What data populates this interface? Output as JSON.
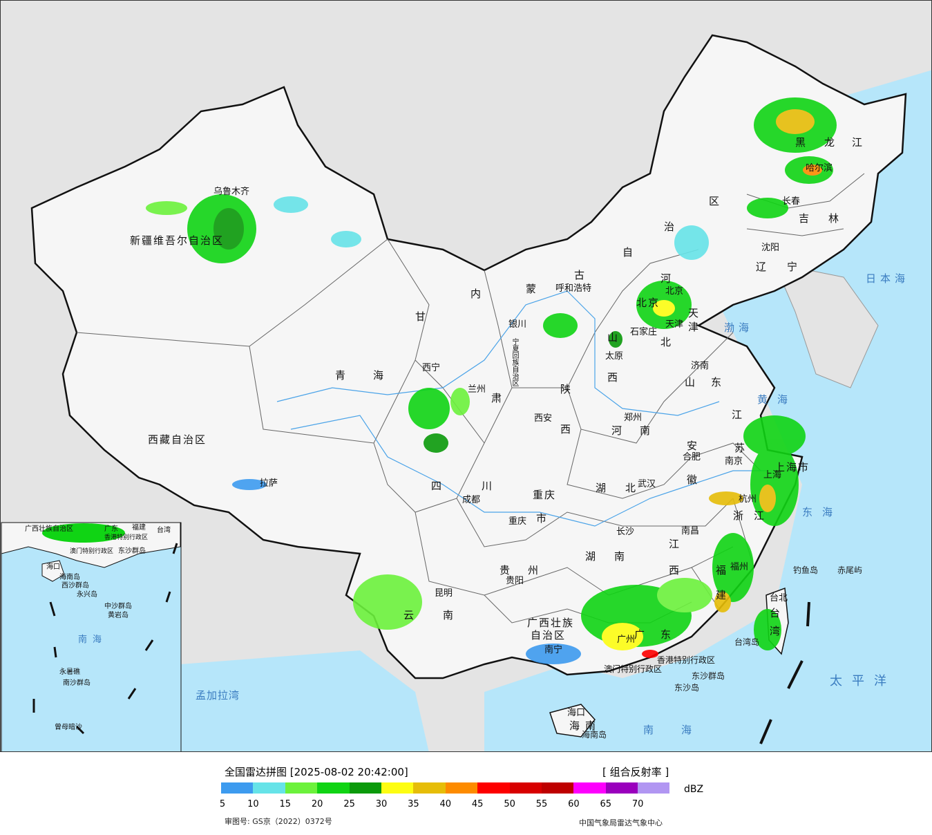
{
  "title": "全国雷达拼图 [2025-08-02 20:42:00]",
  "product": "[ 组合反射率 ]",
  "unit": "dBZ",
  "approval_no": "审图号: GS京（2022）0372号",
  "credit": "中国气象局雷达气象中心",
  "legend": {
    "colors": [
      "#3d9bef",
      "#66e3e8",
      "#6cf23c",
      "#10d414",
      "#0b9a0b",
      "#fdfd12",
      "#e6bd08",
      "#fd8b00",
      "#fd0000",
      "#d80000",
      "#be0000",
      "#fd00fd",
      "#9a00bd",
      "#b196f2"
    ],
    "ticks": [
      "5",
      "10",
      "15",
      "20",
      "25",
      "30",
      "35",
      "40",
      "45",
      "50",
      "55",
      "60",
      "65",
      "70"
    ]
  },
  "colors": {
    "sea": "#b6e6fa",
    "land": "#f6f6f6",
    "outside": "#e4e4e4",
    "border": "#111111"
  },
  "provinces": [
    "新疆维吾尔自治区",
    "西藏自治区",
    "青海",
    "甘",
    "肃",
    "内",
    "蒙",
    "古",
    "自",
    "治",
    "区",
    "黑",
    "龙",
    "江",
    "吉",
    "林",
    "辽",
    "宁",
    "河",
    "北",
    "山",
    "西",
    "陕",
    "西",
    "四",
    "川",
    "云",
    "南",
    "贵",
    "州",
    "湖",
    "北",
    "湖",
    "南",
    "河",
    "南",
    "山",
    "东",
    "安",
    "徽",
    "江",
    "苏",
    "浙",
    "江",
    "江",
    "西",
    "福",
    "建",
    "广",
    "东",
    "广西壮族",
    "自治区",
    "海",
    "南",
    "台",
    "湾",
    "重庆",
    "市",
    "上海市",
    "宁夏回族自治区",
    "天",
    "津",
    "北京"
  ],
  "cities": [
    "乌鲁木齐",
    "拉萨",
    "西宁",
    "兰州",
    "银川",
    "呼和浩特",
    "北京",
    "天津",
    "石家庄",
    "太原",
    "济南",
    "郑州",
    "西安",
    "成都",
    "重庆",
    "贵阳",
    "昆明",
    "南宁",
    "广州",
    "长沙",
    "武汉",
    "南昌",
    "福州",
    "杭州",
    "南京",
    "合肥",
    "上海",
    "台北",
    "海口",
    "沈阳",
    "长春",
    "哈尔滨",
    "香港特别行政区",
    "澳门特别行政区"
  ],
  "seas": [
    "日本海",
    "渤海",
    "黄海",
    "东海",
    "太平洋",
    "南海",
    "孟加拉湾"
  ],
  "islands": [
    "钓鱼岛",
    "赤尾屿",
    "台湾岛",
    "东沙群岛",
    "海南岛",
    "东沙岛"
  ],
  "inset": [
    "广西壮族自治区",
    "广东",
    "福建",
    "台湾",
    "澳门特别行政区",
    "香港特别行政区",
    "东沙群岛",
    "海口",
    "海南岛",
    "西沙群岛",
    "永兴岛",
    "中沙群岛",
    "黄岩岛",
    "南海",
    "永暑礁",
    "南沙群岛",
    "曾母暗沙"
  ]
}
